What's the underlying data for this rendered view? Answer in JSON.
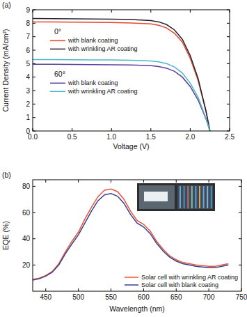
{
  "chart_data": [
    {
      "type": "line",
      "panel_label": "(a)",
      "x_label": "Voltage (V)",
      "y_label": "Current Density (mA/cm²)",
      "annotations": [
        "0°",
        "60°"
      ],
      "legend": "upper left",
      "xlim": [
        0,
        2.5
      ],
      "xticks": [
        {
          "value": 0,
          "label": "0.0"
        },
        0.5,
        {
          "value": 1,
          "label": "1.0"
        },
        1.5,
        {
          "value": 2,
          "label": "2.0"
        },
        2.5
      ],
      "ylim": [
        0,
        9
      ],
      "yticks": [
        0,
        1,
        2,
        3,
        4,
        5,
        6,
        7,
        8,
        9
      ],
      "x": [
        0,
        0.25,
        0.5,
        0.75,
        1.0,
        1.25,
        1.5,
        1.6,
        1.7,
        1.8,
        1.9,
        2.0,
        2.1,
        2.2,
        2.25
      ],
      "series": [
        {
          "name": "with blank coating",
          "color": "#e8452c",
          "values": [
            8.1,
            8.09,
            8.08,
            8.07,
            8.05,
            8.02,
            7.95,
            7.85,
            7.65,
            7.25,
            6.6,
            5.4,
            3.75,
            1.45,
            0
          ]
        },
        {
          "name": "with wrinkling AR coating",
          "color": "#22222e",
          "values": [
            8.35,
            8.34,
            8.33,
            8.32,
            8.3,
            8.27,
            8.2,
            8.1,
            7.9,
            7.5,
            6.8,
            5.6,
            3.9,
            1.5,
            0
          ]
        },
        {
          "name": "with blank coating",
          "color": "#5a3f9c",
          "values": [
            4.95,
            4.95,
            4.94,
            4.93,
            4.92,
            4.9,
            4.85,
            4.78,
            4.66,
            4.43,
            4.0,
            3.3,
            2.3,
            0.9,
            0
          ]
        },
        {
          "name": "with wrinkling AR coating",
          "color": "#4fb6c8",
          "values": [
            5.3,
            5.3,
            5.29,
            5.28,
            5.27,
            5.25,
            5.2,
            5.13,
            5.0,
            4.75,
            4.3,
            3.55,
            2.5,
            0.95,
            0
          ]
        }
      ]
    },
    {
      "type": "line",
      "panel_label": "(b)",
      "x_label": "Wavelength (nm)",
      "y_label": "EQE (%)",
      "legend": "lower right",
      "xlim": [
        430,
        750
      ],
      "xticks": [
        450,
        500,
        550,
        600,
        650,
        700,
        750
      ],
      "ylim": [
        0,
        85
      ],
      "yticks": [
        20,
        40,
        60,
        80
      ],
      "x": [
        430,
        440,
        450,
        460,
        470,
        480,
        490,
        500,
        510,
        520,
        530,
        540,
        550,
        560,
        570,
        580,
        590,
        600,
        610,
        620,
        630,
        640,
        650,
        660,
        670,
        680,
        690,
        700,
        710,
        720,
        730
      ],
      "series": [
        {
          "name": "Solar cell with wrinkling AR coating",
          "color": "#e8553a",
          "values": [
            9,
            10,
            12,
            15,
            21,
            30,
            38,
            45,
            55,
            64,
            72,
            77,
            78,
            76,
            70,
            61,
            54,
            51,
            46,
            38,
            32,
            27,
            24,
            22,
            21,
            20,
            19.5,
            19,
            19,
            20,
            21
          ]
        },
        {
          "name": "Solar cell with blank coating",
          "color": "#3a3f8f",
          "values": [
            8.5,
            9.5,
            11.5,
            14.5,
            20,
            28.5,
            36,
            43,
            52,
            61,
            69,
            73.5,
            74.5,
            72.5,
            67,
            58.5,
            52,
            49,
            44,
            36.5,
            30.5,
            26,
            23,
            21,
            20,
            19,
            18.5,
            18,
            18,
            19,
            20
          ]
        }
      ]
    }
  ]
}
